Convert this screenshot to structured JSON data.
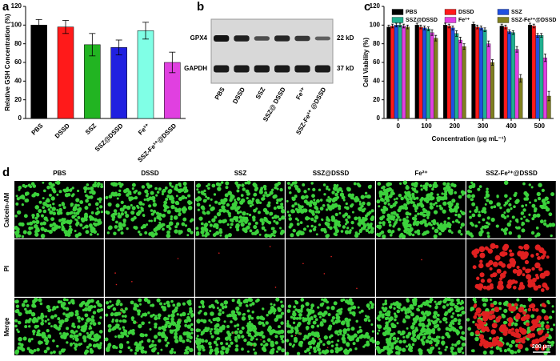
{
  "panel_labels": [
    "a",
    "b",
    "c",
    "d"
  ],
  "chart_data": [
    {
      "type": "bar",
      "ylabel": "Relative GSH Concentration (%)",
      "categories": [
        "PBS",
        "DSSD",
        "SSZ",
        "SSZ@DSSD",
        "Fe³⁺",
        "SSZ-Fe³⁺@DSSD"
      ],
      "values": [
        100,
        98,
        79,
        76,
        94,
        60
      ],
      "errors": [
        6,
        7,
        12,
        8,
        9,
        11
      ],
      "colors": [
        "#000000",
        "#ff1a1a",
        "#22b422",
        "#2020e0",
        "#80ffe6",
        "#e040e0"
      ],
      "ylim": [
        0,
        120
      ],
      "yticks": [
        0,
        20,
        40,
        60,
        80,
        100,
        120
      ]
    },
    {
      "type": "grouped-bar",
      "ylabel": "Cell Viability (%)",
      "xlabel": "Concentration (μg mL⁻¹)",
      "categories": [
        "0",
        "100",
        "200",
        "300",
        "400",
        "500"
      ],
      "series": [
        {
          "name": "PBS",
          "color": "#000000",
          "values": [
            98,
            100,
            100,
            101,
            99,
            100
          ],
          "errors": [
            2,
            2,
            2,
            2,
            2,
            2
          ]
        },
        {
          "name": "DSSD",
          "color": "#ff1a1a",
          "values": [
            99,
            98,
            99,
            98,
            98,
            99
          ],
          "errors": [
            2,
            2,
            2,
            2,
            2,
            2
          ]
        },
        {
          "name": "SSZ",
          "color": "#2050e0",
          "values": [
            100,
            97,
            97,
            97,
            93,
            89
          ],
          "errors": [
            2,
            2,
            2,
            2,
            2,
            2
          ]
        },
        {
          "name": "SSZ@DSSD",
          "color": "#20b090",
          "values": [
            100,
            96,
            91,
            95,
            92,
            89
          ],
          "errors": [
            2,
            2,
            3,
            2,
            2,
            2
          ]
        },
        {
          "name": "Fe³⁺",
          "color": "#e040e0",
          "values": [
            99,
            92,
            84,
            80,
            74,
            65
          ],
          "errors": [
            2,
            3,
            3,
            3,
            3,
            4
          ]
        },
        {
          "name": "SSZ-Fe³⁺@DSSD",
          "color": "#808020",
          "values": [
            98,
            86,
            77,
            60,
            43,
            24
          ],
          "errors": [
            2,
            3,
            3,
            3,
            4,
            5
          ]
        }
      ],
      "ylim": [
        0,
        120
      ],
      "yticks": [
        0,
        20,
        40,
        60,
        80,
        100,
        120
      ]
    }
  ],
  "blot": {
    "bands": [
      {
        "label": "GPX4",
        "size": "22 kD"
      },
      {
        "label": "GAPDH",
        "size": "37 kD"
      }
    ],
    "lanes": [
      "PBS",
      "DSSD",
      "SSZ",
      "SSZ@ DSSD",
      "Fe³⁺",
      "SSZ-Fe³⁺ @DSSD"
    ]
  },
  "microscopy": {
    "columns": [
      "PBS",
      "DSSD",
      "SSZ",
      "SSZ@DSSD",
      "Fe²⁺",
      "SSZ-Fe²⁺@DSSD"
    ],
    "rows": [
      "Calcein-AM",
      "PI",
      "Merge"
    ],
    "scale_bar": "200 μm"
  }
}
